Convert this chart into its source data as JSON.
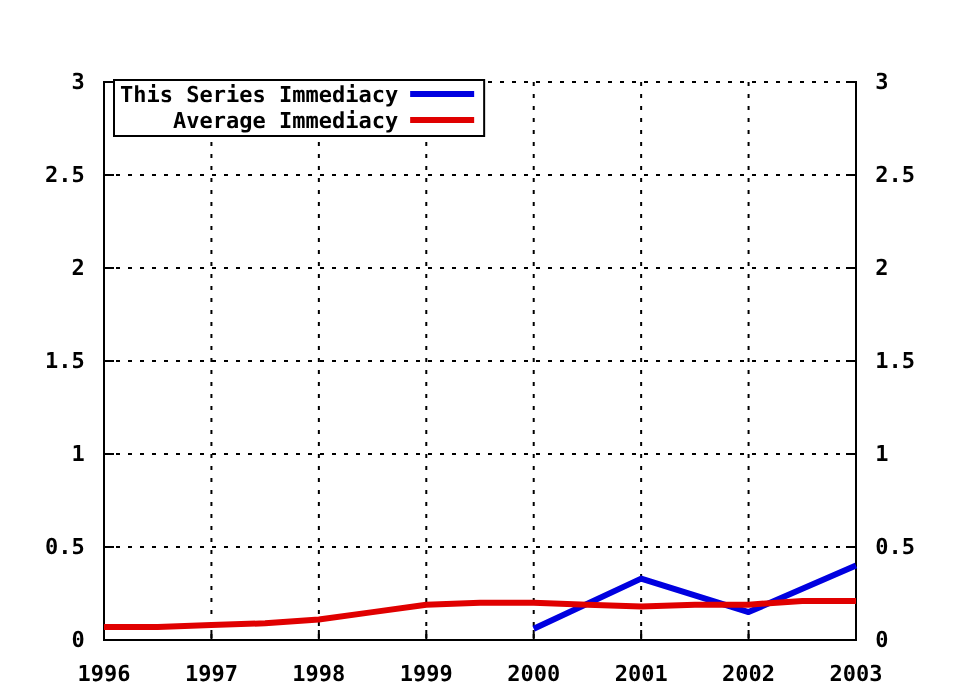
{
  "chart_data": {
    "type": "line",
    "xlim": [
      1996,
      2003
    ],
    "xticks": [
      1996,
      1997,
      1998,
      1999,
      2000,
      2001,
      2002,
      2003
    ],
    "ylim": [
      0,
      3
    ],
    "yticks": [
      0,
      0.5,
      1,
      1.5,
      2,
      2.5,
      3
    ],
    "y2lim": [
      0,
      3
    ],
    "y2ticks": [
      0,
      0.5,
      1,
      1.5,
      2,
      2.5,
      3
    ],
    "grid": true,
    "line_style": "solid",
    "legend": "top left",
    "series": [
      {
        "name": "This Series Immediacy",
        "color": "#0000e0",
        "x": [
          2000,
          2001,
          2002,
          2003
        ],
        "values": [
          0.06,
          0.33,
          0.15,
          0.4
        ]
      },
      {
        "name": "Average Immediacy",
        "color": "#e00000",
        "x": [
          1996,
          1996.5,
          1997,
          1997.5,
          1998,
          1998.5,
          1999,
          1999.5,
          2000,
          2000.5,
          2001,
          2001.5,
          2002,
          2002.5,
          2003
        ],
        "values": [
          0.07,
          0.07,
          0.08,
          0.09,
          0.11,
          0.15,
          0.19,
          0.2,
          0.2,
          0.19,
          0.18,
          0.19,
          0.19,
          0.21,
          0.21
        ]
      }
    ]
  }
}
